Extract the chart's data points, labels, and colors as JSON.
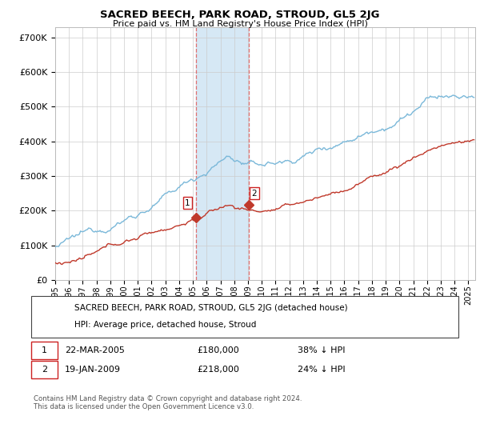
{
  "title": "SACRED BEECH, PARK ROAD, STROUD, GL5 2JG",
  "subtitle": "Price paid vs. HM Land Registry's House Price Index (HPI)",
  "ylabel_ticks": [
    "£0",
    "£100K",
    "£200K",
    "£300K",
    "£400K",
    "£500K",
    "£600K",
    "£700K"
  ],
  "ytick_vals": [
    0,
    100000,
    200000,
    300000,
    400000,
    500000,
    600000,
    700000
  ],
  "ylim": [
    0,
    730000
  ],
  "xlim_start": 1995.0,
  "xlim_end": 2025.5,
  "hpi_color": "#7ab8d9",
  "price_color": "#c0392b",
  "shaded_color": "#d6e8f5",
  "vline_color": "#e07070",
  "marker1_x": 2005.22,
  "marker1_y": 180000,
  "marker1_label": "1",
  "marker2_x": 2009.05,
  "marker2_y": 218000,
  "marker2_label": "2",
  "legend_label_price": "SACRED BEECH, PARK ROAD, STROUD, GL5 2JG (detached house)",
  "legend_label_hpi": "HPI: Average price, detached house, Stroud",
  "footer": "Contains HM Land Registry data © Crown copyright and database right 2024.\nThis data is licensed under the Open Government Licence v3.0.",
  "background_color": "#ffffff",
  "grid_color": "#cccccc"
}
